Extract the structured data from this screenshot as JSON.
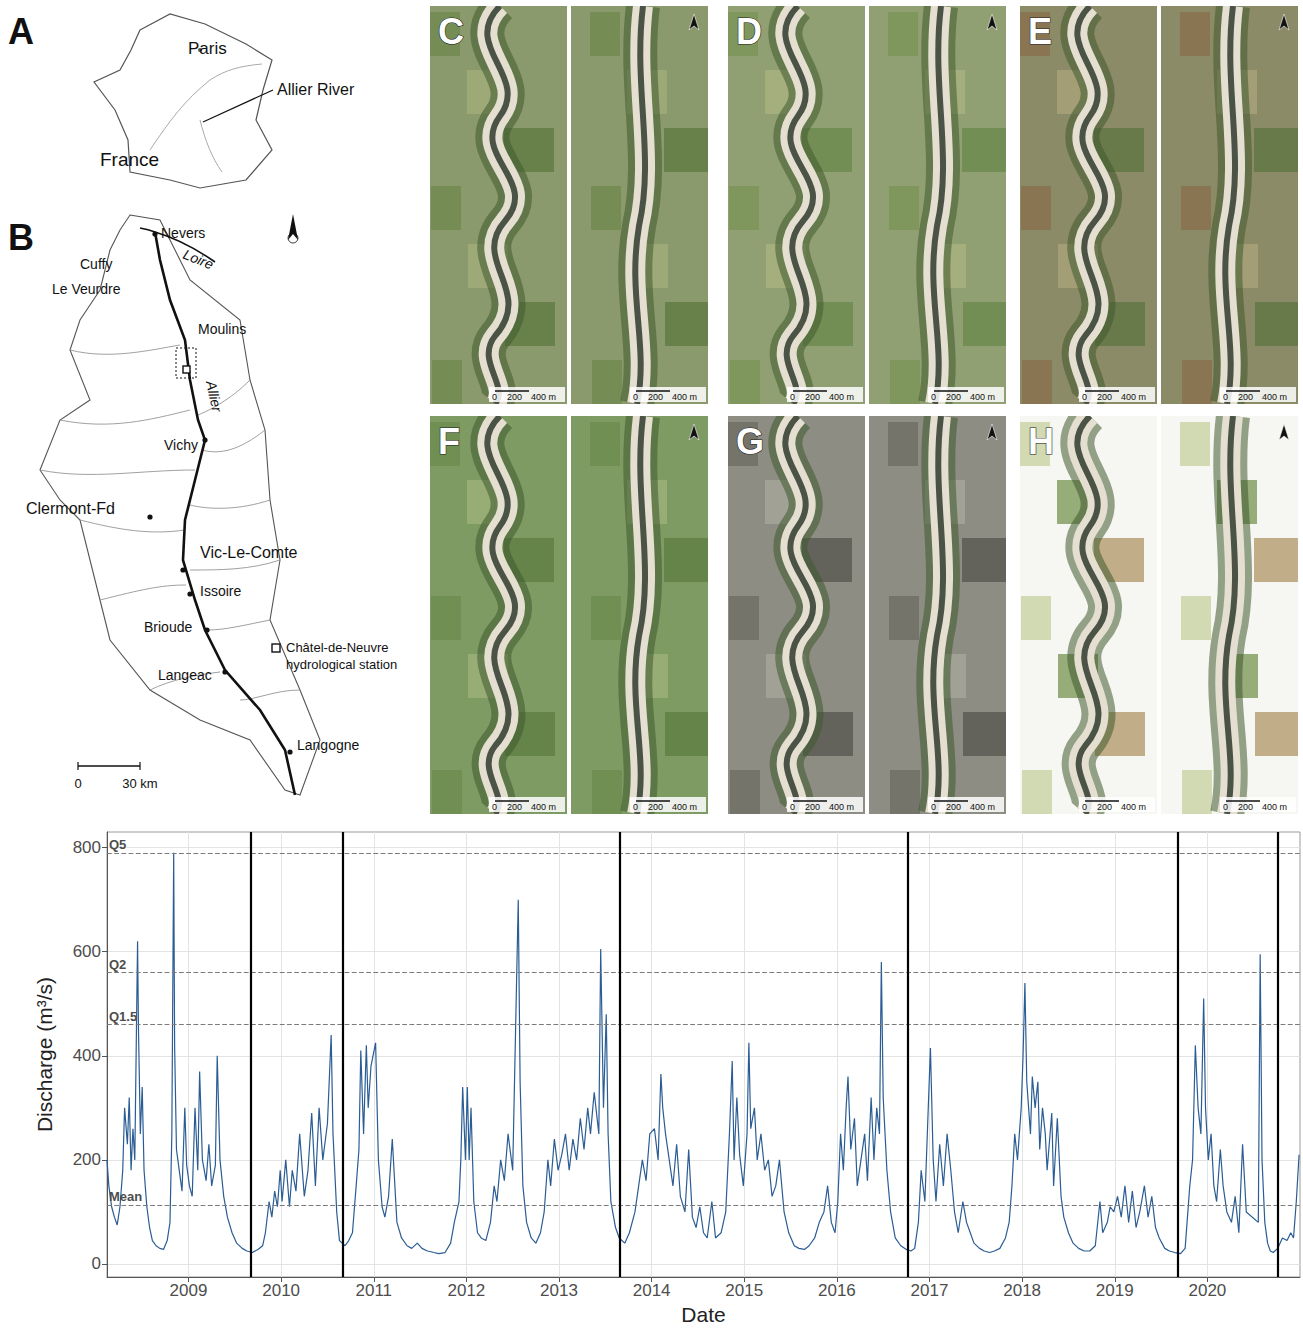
{
  "figure": {
    "panel_A": {
      "letter": "A",
      "labels": [
        "Paris",
        "France"
      ],
      "callout": "Allier River"
    },
    "panel_B": {
      "letter": "B",
      "places": [
        "Nevers",
        "Cuffy",
        "Le Veurdre",
        "Moulins",
        "Vichy",
        "Clermont-Fd",
        "Vic-Le-Comte",
        "Issoire",
        "Brioude",
        "Langeac",
        "Langogne"
      ],
      "rivers": [
        "Loire",
        "Allier"
      ],
      "station_legend": "Châtel-de-Neuvre hydrological station",
      "scale_labels": [
        "0",
        "30 km"
      ]
    },
    "photo_panels": {
      "letters": [
        "C",
        "D",
        "E",
        "F",
        "G",
        "H"
      ],
      "scale_labels": [
        "0",
        "200",
        "400 m"
      ]
    }
  },
  "chart_data": {
    "type": "line",
    "x_label": "Date",
    "y_label": "Discharge (m³/s)",
    "color": "#2b5d94",
    "grid": true,
    "xlim": [
      2008.12,
      2021.0
    ],
    "xticks": [
      2009,
      2010,
      2011,
      2012,
      2013,
      2014,
      2015,
      2016,
      2017,
      2018,
      2019,
      2020
    ],
    "ylim": [
      -25,
      830
    ],
    "yticks": [
      0,
      200,
      400,
      600,
      800
    ],
    "reference_lines": [
      {
        "label": "Q5",
        "value": 790
      },
      {
        "label": "Q2",
        "value": 560
      },
      {
        "label": "Q1.5",
        "value": 460
      },
      {
        "label": "Mean",
        "value": 113
      }
    ],
    "vertical_lines": [
      2009.67,
      2010.67,
      2013.66,
      2016.76,
      2019.68,
      2020.76
    ],
    "x": [
      2008.12,
      2008.14,
      2008.17,
      2008.2,
      2008.23,
      2008.26,
      2008.29,
      2008.31,
      2008.34,
      2008.36,
      2008.38,
      2008.4,
      2008.42,
      2008.45,
      2008.46,
      2008.48,
      2008.5,
      2008.52,
      2008.55,
      2008.58,
      2008.61,
      2008.65,
      2008.69,
      2008.73,
      2008.77,
      2008.8,
      2008.82,
      2008.84,
      2008.85,
      2008.87,
      2008.9,
      2008.93,
      2008.96,
      2008.98,
      2009.01,
      2009.04,
      2009.07,
      2009.1,
      2009.12,
      2009.15,
      2009.19,
      2009.22,
      2009.25,
      2009.29,
      2009.31,
      2009.34,
      2009.38,
      2009.42,
      2009.47,
      2009.52,
      2009.58,
      2009.63,
      2009.69,
      2009.75,
      2009.8,
      2009.83,
      2009.87,
      2009.9,
      2009.93,
      2009.96,
      2009.99,
      2010.01,
      2010.05,
      2010.09,
      2010.12,
      2010.16,
      2010.2,
      2010.25,
      2010.29,
      2010.33,
      2010.37,
      2010.41,
      2010.45,
      2010.5,
      2010.54,
      2010.56,
      2010.6,
      2010.63,
      2010.69,
      2010.73,
      2010.77,
      2010.81,
      2010.84,
      2010.86,
      2010.89,
      2010.92,
      2010.94,
      2010.97,
      2011.02,
      2011.05,
      2011.09,
      2011.12,
      2011.16,
      2011.2,
      2011.25,
      2011.3,
      2011.36,
      2011.41,
      2011.47,
      2011.52,
      2011.58,
      2011.65,
      2011.7,
      2011.77,
      2011.83,
      2011.87,
      2011.92,
      2011.94,
      2011.96,
      2011.99,
      2012.01,
      2012.03,
      2012.05,
      2012.08,
      2012.12,
      2012.16,
      2012.21,
      2012.26,
      2012.3,
      2012.33,
      2012.37,
      2012.41,
      2012.45,
      2012.5,
      2012.56,
      2012.58,
      2012.61,
      2012.65,
      2012.7,
      2012.75,
      2012.8,
      2012.84,
      2012.88,
      2012.91,
      2012.95,
      2012.99,
      2013.03,
      2013.07,
      2013.11,
      2013.15,
      2013.19,
      2013.23,
      2013.27,
      2013.31,
      2013.34,
      2013.38,
      2013.43,
      2013.45,
      2013.48,
      2013.51,
      2013.53,
      2013.56,
      2013.61,
      2013.65,
      2013.71,
      2013.76,
      2013.82,
      2013.86,
      2013.9,
      2013.94,
      2013.98,
      2014.03,
      2014.07,
      2014.1,
      2014.12,
      2014.15,
      2014.19,
      2014.23,
      2014.27,
      2014.31,
      2014.36,
      2014.4,
      2014.44,
      2014.48,
      2014.52,
      2014.56,
      2014.6,
      2014.65,
      2014.69,
      2014.75,
      2014.8,
      2014.84,
      2014.87,
      2014.89,
      2014.92,
      2014.95,
      2014.99,
      2015.03,
      2015.05,
      2015.07,
      2015.11,
      2015.14,
      2015.18,
      2015.22,
      2015.26,
      2015.3,
      2015.34,
      2015.38,
      2015.43,
      2015.48,
      2015.54,
      2015.59,
      2015.65,
      2015.7,
      2015.76,
      2015.81,
      2015.86,
      2015.9,
      2015.94,
      2015.98,
      2016.01,
      2016.04,
      2016.07,
      2016.1,
      2016.12,
      2016.15,
      2016.19,
      2016.22,
      2016.26,
      2016.3,
      2016.33,
      2016.37,
      2016.4,
      2016.43,
      2016.46,
      2016.48,
      2016.5,
      2016.54,
      2016.58,
      2016.63,
      2016.69,
      2016.75,
      2016.8,
      2016.84,
      2016.88,
      2016.91,
      2016.95,
      2017.01,
      2017.04,
      2017.07,
      2017.11,
      2017.15,
      2017.19,
      2017.23,
      2017.27,
      2017.31,
      2017.36,
      2017.4,
      2017.44,
      2017.48,
      2017.54,
      2017.59,
      2017.65,
      2017.7,
      2017.76,
      2017.82,
      2017.86,
      2017.89,
      2017.92,
      2017.95,
      2017.99,
      2018.01,
      2018.03,
      2018.05,
      2018.09,
      2018.11,
      2018.14,
      2018.17,
      2018.19,
      2018.22,
      2018.25,
      2018.27,
      2018.32,
      2018.34,
      2018.38,
      2018.42,
      2018.45,
      2018.5,
      2018.55,
      2018.61,
      2018.67,
      2018.73,
      2018.79,
      2018.84,
      2018.87,
      2018.92,
      2018.95,
      2018.99,
      2019.03,
      2019.07,
      2019.11,
      2019.15,
      2019.19,
      2019.23,
      2019.27,
      2019.32,
      2019.36,
      2019.4,
      2019.44,
      2019.48,
      2019.54,
      2019.59,
      2019.65,
      2019.71,
      2019.76,
      2019.81,
      2019.84,
      2019.87,
      2019.9,
      2019.93,
      2019.96,
      2019.98,
      2020.01,
      2020.04,
      2020.07,
      2020.1,
      2020.14,
      2020.17,
      2020.21,
      2020.26,
      2020.3,
      2020.34,
      2020.38,
      2020.42,
      2020.55,
      2020.57,
      2020.59,
      2020.62,
      2020.65,
      2020.68,
      2020.71,
      2020.76,
      2020.81,
      2020.86,
      2020.9,
      2020.93,
      2020.96,
      2020.99
    ],
    "values": [
      200,
      150,
      110,
      90,
      75,
      110,
      180,
      300,
      230,
      320,
      180,
      260,
      200,
      620,
      450,
      250,
      340,
      180,
      110,
      70,
      45,
      35,
      30,
      28,
      45,
      80,
      250,
      790,
      420,
      220,
      180,
      140,
      300,
      190,
      150,
      130,
      300,
      180,
      370,
      200,
      160,
      230,
      150,
      190,
      400,
      200,
      130,
      90,
      60,
      40,
      30,
      25,
      22,
      28,
      35,
      60,
      120,
      90,
      140,
      110,
      180,
      120,
      200,
      110,
      180,
      140,
      250,
      130,
      180,
      290,
      150,
      300,
      200,
      270,
      440,
      250,
      100,
      45,
      35,
      45,
      60,
      150,
      220,
      410,
      250,
      420,
      300,
      380,
      425,
      200,
      110,
      90,
      130,
      240,
      80,
      50,
      35,
      30,
      40,
      30,
      25,
      22,
      20,
      22,
      40,
      80,
      120,
      200,
      340,
      200,
      340,
      200,
      300,
      120,
      60,
      50,
      45,
      80,
      150,
      120,
      200,
      160,
      250,
      180,
      700,
      350,
      150,
      80,
      50,
      40,
      60,
      100,
      200,
      150,
      240,
      180,
      210,
      250,
      180,
      240,
      200,
      280,
      220,
      300,
      250,
      330,
      250,
      605,
      300,
      480,
      250,
      120,
      70,
      50,
      40,
      60,
      100,
      150,
      200,
      160,
      250,
      260,
      200,
      365,
      300,
      250,
      200,
      150,
      230,
      130,
      100,
      220,
      90,
      70,
      110,
      60,
      50,
      120,
      50,
      60,
      100,
      250,
      390,
      200,
      320,
      210,
      150,
      250,
      425,
      260,
      300,
      200,
      250,
      180,
      200,
      130,
      150,
      200,
      100,
      60,
      35,
      30,
      28,
      35,
      50,
      80,
      100,
      150,
      80,
      60,
      120,
      250,
      180,
      300,
      360,
      220,
      280,
      150,
      200,
      250,
      160,
      320,
      200,
      300,
      250,
      580,
      320,
      180,
      100,
      50,
      35,
      28,
      25,
      30,
      80,
      180,
      120,
      415,
      200,
      120,
      230,
      150,
      250,
      180,
      100,
      60,
      120,
      80,
      60,
      40,
      30,
      25,
      22,
      25,
      30,
      50,
      80,
      150,
      250,
      200,
      300,
      400,
      540,
      350,
      250,
      360,
      300,
      350,
      220,
      300,
      250,
      180,
      290,
      150,
      280,
      130,
      90,
      60,
      40,
      30,
      25,
      25,
      35,
      120,
      60,
      80,
      110,
      100,
      130,
      90,
      150,
      80,
      140,
      70,
      100,
      150,
      90,
      130,
      70,
      50,
      30,
      25,
      22,
      20,
      30,
      150,
      200,
      420,
      300,
      250,
      510,
      300,
      200,
      250,
      150,
      120,
      220,
      150,
      100,
      80,
      130,
      60,
      230,
      100,
      80,
      595,
      200,
      80,
      40,
      25,
      22,
      30,
      50,
      45,
      60,
      50,
      120,
      210
    ]
  }
}
